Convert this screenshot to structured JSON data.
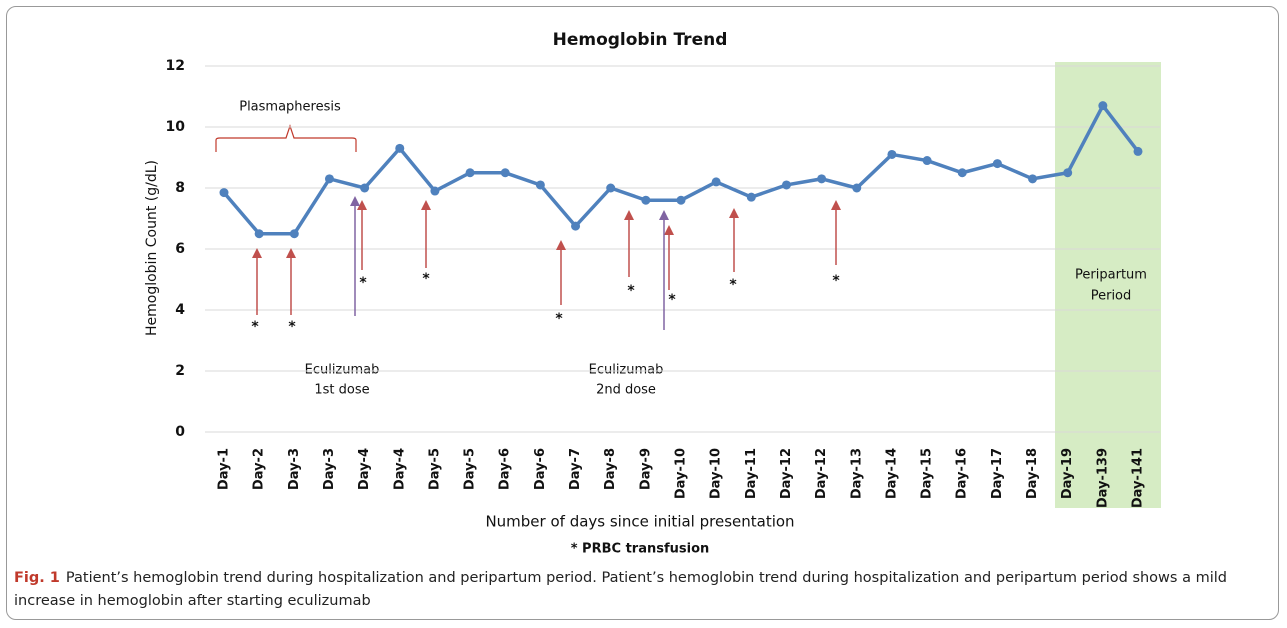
{
  "chart_data": {
    "type": "line",
    "title": "Hemoglobin Trend",
    "x_label": "Number of days since initial presentation",
    "y_label": "Hemoglobin Count (g/dL)",
    "categories": [
      "Day-1",
      "Day-2",
      "Day-3",
      "Day-3",
      "Day-4",
      "Day-4",
      "Day-5",
      "Day-5",
      "Day-6",
      "Day-6",
      "Day-7",
      "Day-8",
      "Day-9",
      "Day-10",
      "Day-10",
      "Day-11",
      "Day-12",
      "Day-12",
      "Day-13",
      "Day-14",
      "Day-15",
      "Day-16",
      "Day-17",
      "Day-18",
      "Day-19",
      "Day-139",
      "Day-141"
    ],
    "values": [
      7.85,
      6.5,
      6.5,
      8.3,
      8.0,
      9.3,
      7.9,
      8.5,
      8.5,
      8.1,
      6.75,
      8.0,
      7.6,
      7.6,
      8.2,
      7.7,
      8.1,
      8.3,
      8.0,
      9.1,
      8.9,
      8.5,
      8.8,
      8.3,
      8.5,
      10.7,
      9.2
    ],
    "color": "#4f81bd",
    "ylim": [
      0,
      12
    ],
    "yticks": [
      0,
      2,
      4,
      6,
      8,
      10,
      12
    ],
    "grid": true,
    "annotations": {
      "plasmapheresis": "Plasmapheresis",
      "dose1": [
        "Eculizumab",
        "1st dose"
      ],
      "dose2": [
        "Eculizumab",
        "2nd dose"
      ],
      "peripartum": [
        "Peripartum",
        "Period"
      ],
      "legend": "* PRBC transfusion"
    },
    "transfusion_markers": [
      "*",
      "*",
      "*",
      "*",
      "*",
      "*",
      "*",
      "*",
      "*"
    ]
  },
  "caption": {
    "label": "Fig. 1",
    "text": "Patient’s hemoglobin trend during hospitalization and peripartum period. Patient’s hemoglobin trend during hospitalization and peripartum period shows a mild increase in hemoglobin after starting eculizumab"
  }
}
